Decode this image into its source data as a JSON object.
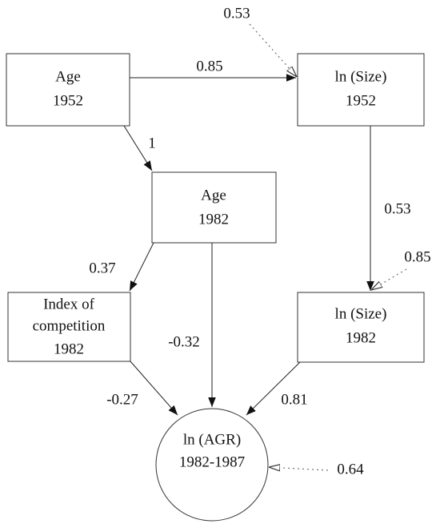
{
  "nodes": [
    {
      "lines": [
        "Age",
        "1952"
      ]
    },
    {
      "lines": [
        "ln (Size)",
        "1952"
      ]
    },
    {
      "lines": [
        "Age",
        "1982"
      ]
    },
    {
      "lines": [
        "Index of",
        "competition",
        "1982"
      ]
    },
    {
      "lines": [
        "ln (Size)",
        "1982"
      ]
    },
    {
      "lines": [
        "ln (AGR)",
        "1982-1987"
      ]
    }
  ],
  "edges": [
    {
      "label": "0.85"
    },
    {
      "label": "1"
    },
    {
      "label": "0.53"
    },
    {
      "label": "0.37"
    },
    {
      "label": "-0.32"
    },
    {
      "label": "-0.27"
    },
    {
      "label": "0.81"
    }
  ],
  "errors": [
    {
      "label": "0.53"
    },
    {
      "label": "0.85"
    },
    {
      "label": "0.64"
    }
  ]
}
